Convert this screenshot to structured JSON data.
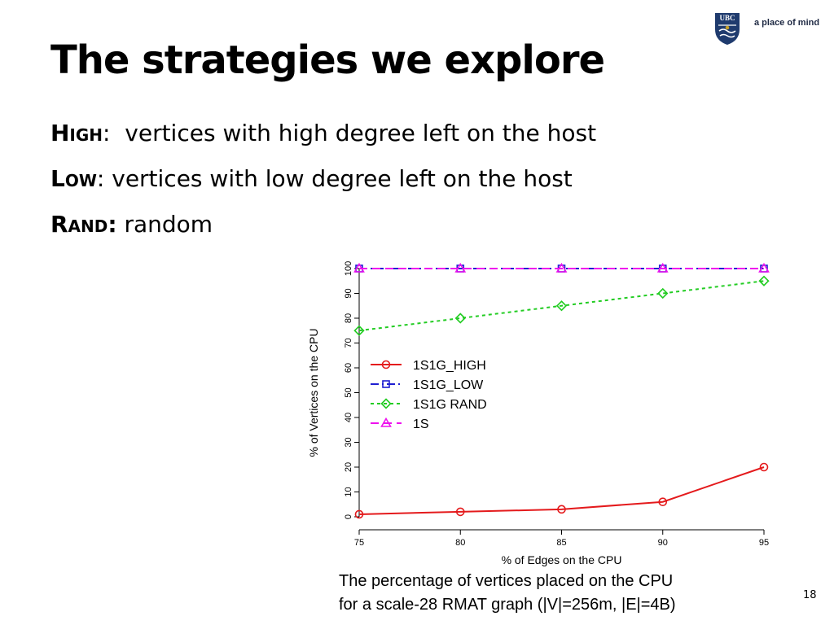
{
  "logo": {
    "crest_text": "UBC",
    "tagline": "a place of mind",
    "colors": {
      "crest": "#1f3b6e",
      "accent": "#c9a227"
    }
  },
  "slide": {
    "title": "The strategies we explore",
    "bullets": [
      {
        "term": "High",
        "sep": ":",
        "text": "  vertices with high degree left on the host"
      },
      {
        "term": "Low",
        "sep": ":",
        "text": " vertices with low degree left on the host"
      },
      {
        "term": "Rand:",
        "sep": "",
        "text": " random"
      }
    ],
    "caption_lines": [
      "The percentage of vertices placed on the CPU",
      "for a scale-28 RMAT graph (|V|=256m, |E|=4B)"
    ],
    "page_number": "18"
  },
  "chart_data": {
    "type": "line",
    "xlabel": "% of Edges on the CPU",
    "ylabel": "% of Vertices on the CPU",
    "x": [
      75,
      80,
      85,
      90,
      95
    ],
    "xlim": [
      75,
      95
    ],
    "ylim": [
      0,
      100
    ],
    "xticks": [
      "75",
      "80",
      "85",
      "90",
      "95"
    ],
    "yticks": [
      "0",
      "10",
      "20",
      "30",
      "40",
      "50",
      "60",
      "70",
      "80",
      "90",
      "100"
    ],
    "grid": false,
    "legend_position": "center-left",
    "series": [
      {
        "name": "1S1G_HIGH",
        "values": [
          1,
          2,
          3,
          6,
          20
        ],
        "color": "#e41a1c",
        "marker": "circle",
        "dash": "solid"
      },
      {
        "name": "1S1G_LOW",
        "values": [
          100,
          100,
          100,
          100,
          100
        ],
        "color": "#1f1fd1",
        "marker": "square",
        "dash": "dashdot"
      },
      {
        "name": "1S1G RAND",
        "values": [
          75,
          80,
          85,
          90,
          95
        ],
        "color": "#22cc22",
        "marker": "diamond",
        "dash": "dotted"
      },
      {
        "name": "1S",
        "values": [
          100,
          100,
          100,
          100,
          100
        ],
        "color": "#ee11ee",
        "marker": "triangle",
        "dash": "dashed"
      }
    ]
  }
}
